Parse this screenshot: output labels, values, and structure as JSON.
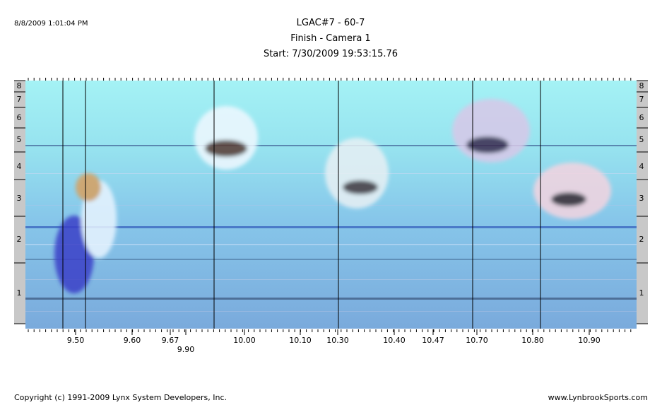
{
  "header": {
    "timestamp": "8/8/2009 1:01:04 PM",
    "title": "LGAC#7 - 60-7",
    "subtitle": "Finish - Camera 1",
    "start": "Start: 7/30/2009 19:53:15.76"
  },
  "lanes": [
    "8",
    "7",
    "6",
    "5",
    "4",
    "3",
    "2",
    "1"
  ],
  "time_labels": [
    "9.50",
    "9.60",
    "9.67",
    "9.90",
    "10.00",
    "10.10",
    "10.30",
    "10.40",
    "10.47",
    "10.70",
    "10.80",
    "10.90"
  ],
  "footer": {
    "copyright": "Copyright (c) 1991-2009 Lynx System Developers, Inc.",
    "website": "www.LynbrookSports.com"
  }
}
